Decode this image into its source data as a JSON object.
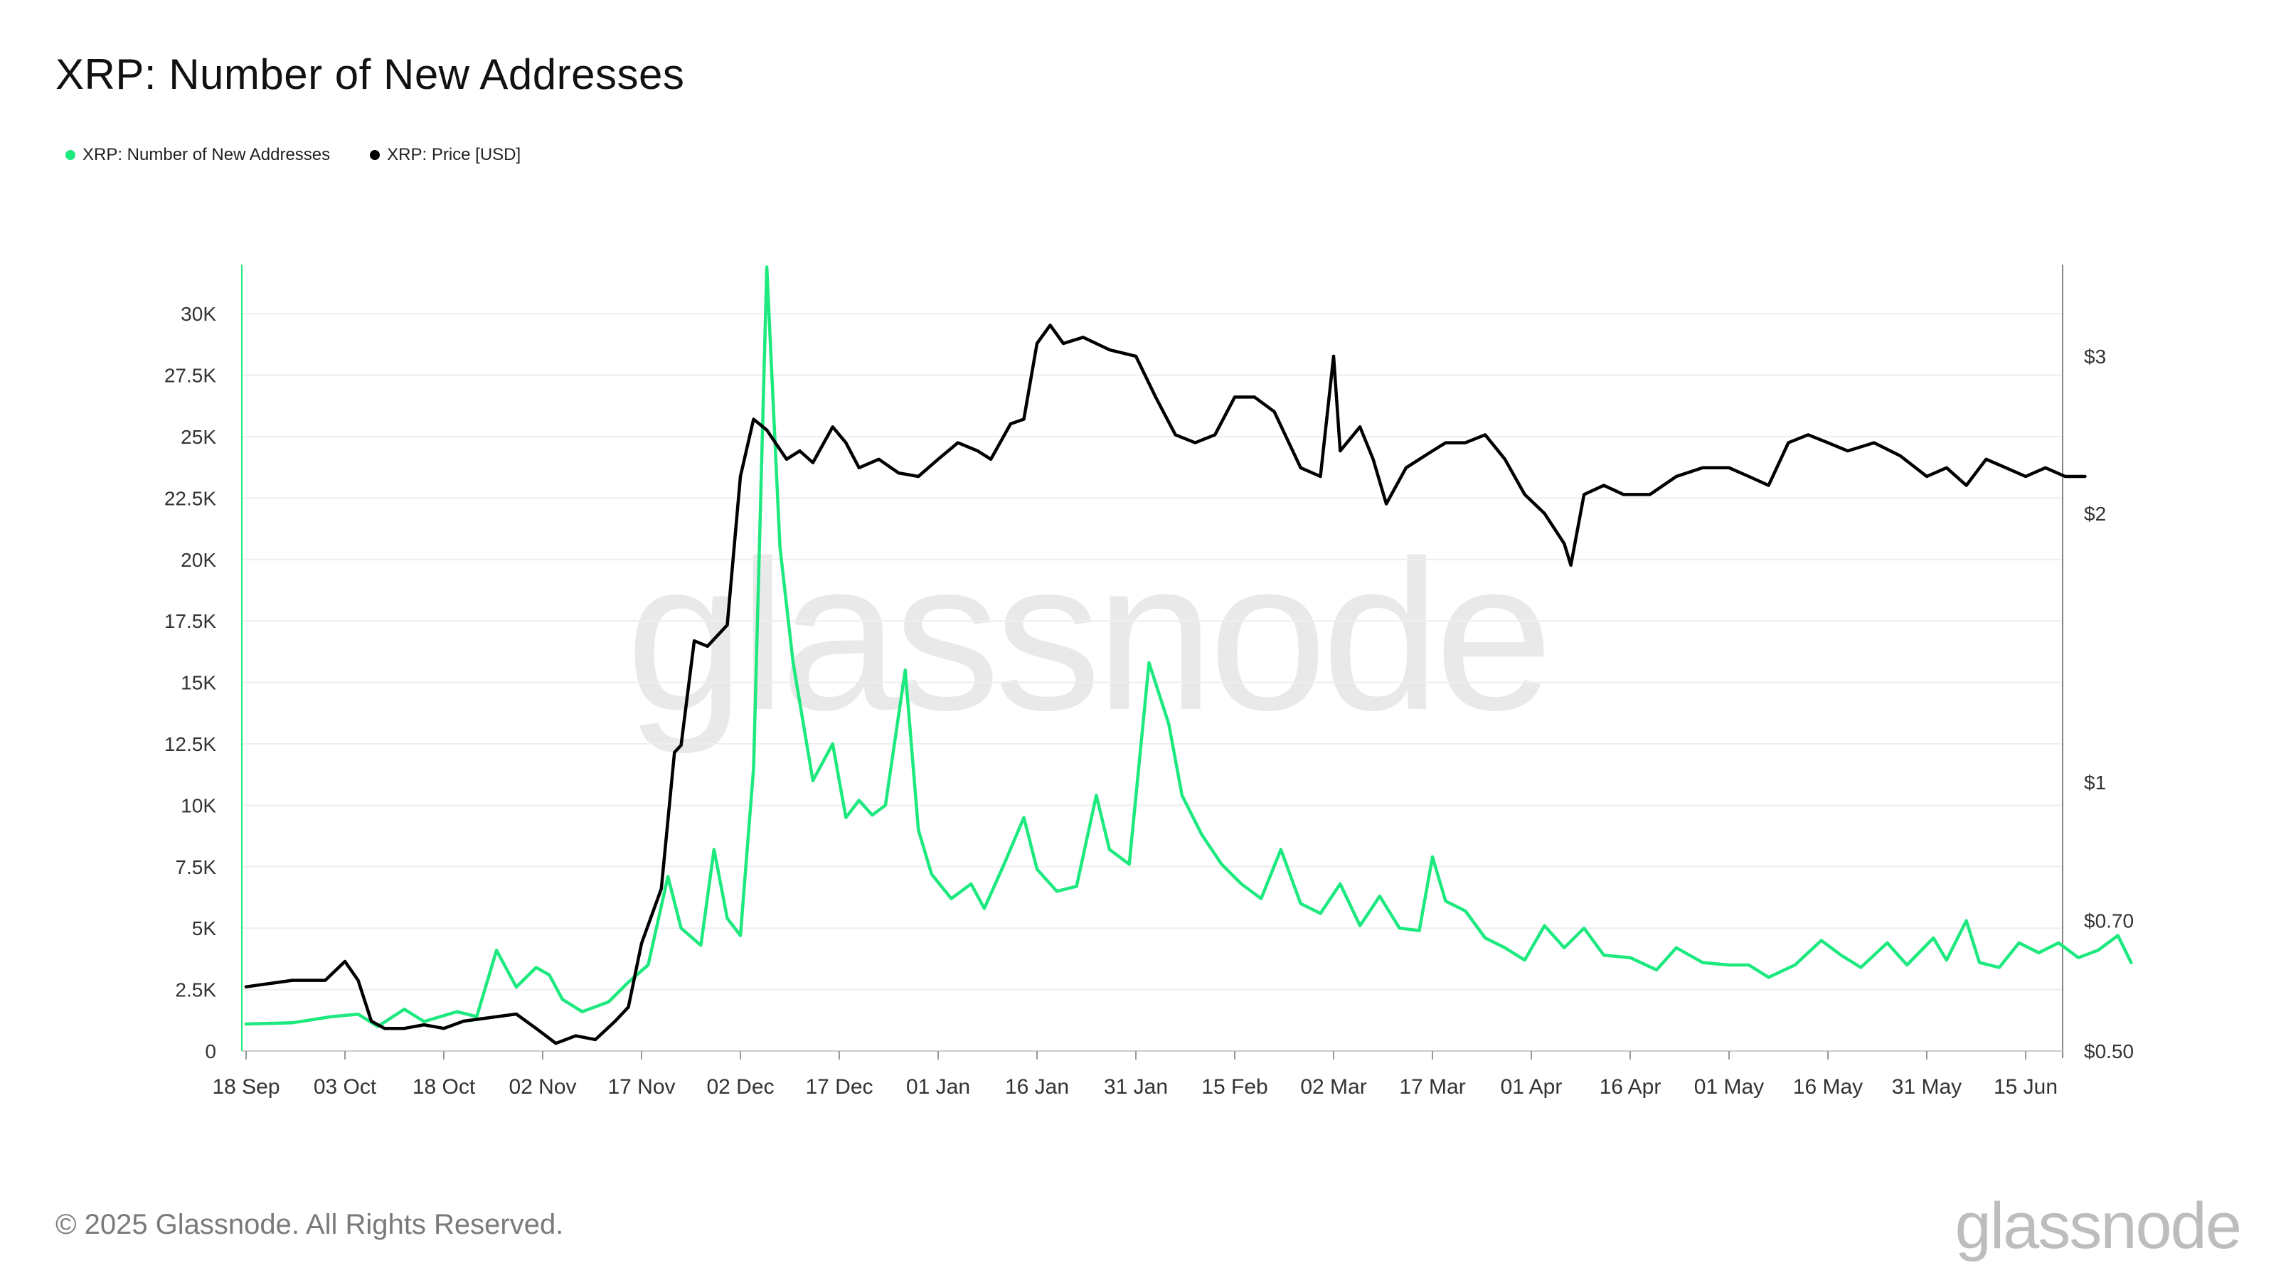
{
  "title": "XRP: Number of New Addresses",
  "watermark": "glassnode",
  "copyright": "© 2025 Glassnode. All Rights Reserved.",
  "brand_logo_text": "glassnode",
  "colors": {
    "addresses": "#1de97f",
    "price": "#000000",
    "grid": "#eeeeee"
  },
  "legend": [
    {
      "label": "XRP: Number of New Addresses",
      "color": "#1de97f"
    },
    {
      "label": "XRP: Price [USD]",
      "color": "#000000"
    }
  ],
  "chart_data": {
    "type": "line",
    "title": "XRP: Number of New Addresses",
    "x_start": "2024-09-18",
    "x_end": "2025-06-20",
    "x_tick_labels": [
      "18 Sep",
      "03 Oct",
      "18 Oct",
      "02 Nov",
      "17 Nov",
      "02 Dec",
      "17 Dec",
      "01 Jan",
      "16 Jan",
      "31 Jan",
      "15 Feb",
      "02 Mar",
      "17 Mar",
      "01 Apr",
      "16 Apr",
      "01 May",
      "16 May",
      "31 May",
      "15 Jun"
    ],
    "y_left": {
      "ticks": [
        0,
        2500,
        5000,
        7500,
        10000,
        12500,
        15000,
        17500,
        20000,
        22500,
        25000,
        27500,
        30000
      ],
      "tick_labels": [
        "0",
        "2.5K",
        "5K",
        "7.5K",
        "10K",
        "12.5K",
        "15K",
        "17.5K",
        "20K",
        "22.5K",
        "25K",
        "27.5K",
        "30K"
      ],
      "range": [
        0,
        32000
      ]
    },
    "y_right": {
      "scale": "log",
      "ticks": [
        0.5,
        0.7,
        1,
        2,
        3
      ],
      "tick_labels": [
        "$0.50",
        "$0.70",
        "$1",
        "$2",
        "$3"
      ],
      "range": [
        0.5,
        3.8
      ]
    },
    "grid": true,
    "legend_position": "top-left",
    "series": [
      {
        "name": "XRP: Number of New Addresses",
        "axis": "left",
        "color": "#1de97f",
        "points": [
          [
            "2024-09-18",
            1100
          ],
          [
            "2024-09-25",
            1150
          ],
          [
            "2024-10-01",
            1400
          ],
          [
            "2024-10-05",
            1500
          ],
          [
            "2024-10-08",
            1000
          ],
          [
            "2024-10-12",
            1700
          ],
          [
            "2024-10-15",
            1200
          ],
          [
            "2024-10-20",
            1600
          ],
          [
            "2024-10-23",
            1400
          ],
          [
            "2024-10-26",
            4100
          ],
          [
            "2024-10-29",
            2600
          ],
          [
            "2024-11-01",
            3400
          ],
          [
            "2024-11-03",
            3100
          ],
          [
            "2024-11-05",
            2100
          ],
          [
            "2024-11-08",
            1600
          ],
          [
            "2024-11-12",
            2000
          ],
          [
            "2024-11-15",
            2800
          ],
          [
            "2024-11-18",
            3500
          ],
          [
            "2024-11-21",
            7100
          ],
          [
            "2024-11-23",
            5000
          ],
          [
            "2024-11-26",
            4300
          ],
          [
            "2024-11-28",
            8200
          ],
          [
            "2024-11-30",
            5400
          ],
          [
            "2024-12-02",
            4700
          ],
          [
            "2024-12-04",
            11500
          ],
          [
            "2024-12-06",
            31900
          ],
          [
            "2024-12-08",
            20500
          ],
          [
            "2024-12-10",
            15800
          ],
          [
            "2024-12-13",
            11000
          ],
          [
            "2024-12-16",
            12500
          ],
          [
            "2024-12-18",
            9500
          ],
          [
            "2024-12-20",
            10200
          ],
          [
            "2024-12-22",
            9600
          ],
          [
            "2024-12-24",
            10000
          ],
          [
            "2024-12-27",
            15500
          ],
          [
            "2024-12-29",
            9000
          ],
          [
            "2024-12-31",
            7200
          ],
          [
            "2025-01-03",
            6200
          ],
          [
            "2025-01-06",
            6800
          ],
          [
            "2025-01-08",
            5800
          ],
          [
            "2025-01-11",
            7600
          ],
          [
            "2025-01-14",
            9500
          ],
          [
            "2025-01-16",
            7400
          ],
          [
            "2025-01-19",
            6500
          ],
          [
            "2025-01-22",
            6700
          ],
          [
            "2025-01-25",
            10400
          ],
          [
            "2025-01-27",
            8200
          ],
          [
            "2025-01-30",
            7600
          ],
          [
            "2025-02-02",
            15800
          ],
          [
            "2025-02-05",
            13300
          ],
          [
            "2025-02-07",
            10400
          ],
          [
            "2025-02-10",
            8800
          ],
          [
            "2025-02-13",
            7600
          ],
          [
            "2025-02-16",
            6800
          ],
          [
            "2025-02-19",
            6200
          ],
          [
            "2025-02-22",
            8200
          ],
          [
            "2025-02-25",
            6000
          ],
          [
            "2025-02-28",
            5600
          ],
          [
            "2025-03-03",
            6800
          ],
          [
            "2025-03-06",
            5100
          ],
          [
            "2025-03-09",
            6300
          ],
          [
            "2025-03-12",
            5000
          ],
          [
            "2025-03-15",
            4900
          ],
          [
            "2025-03-17",
            7900
          ],
          [
            "2025-03-19",
            6100
          ],
          [
            "2025-03-22",
            5700
          ],
          [
            "2025-03-25",
            4600
          ],
          [
            "2025-03-28",
            4200
          ],
          [
            "2025-03-31",
            3700
          ],
          [
            "2025-04-03",
            5100
          ],
          [
            "2025-04-06",
            4200
          ],
          [
            "2025-04-09",
            5000
          ],
          [
            "2025-04-12",
            3900
          ],
          [
            "2025-04-16",
            3800
          ],
          [
            "2025-04-20",
            3300
          ],
          [
            "2025-04-23",
            4200
          ],
          [
            "2025-04-27",
            3600
          ],
          [
            "2025-05-01",
            3500
          ],
          [
            "2025-05-04",
            3500
          ],
          [
            "2025-05-07",
            3000
          ],
          [
            "2025-05-11",
            3500
          ],
          [
            "2025-05-15",
            4500
          ],
          [
            "2025-05-18",
            3900
          ],
          [
            "2025-05-21",
            3400
          ],
          [
            "2025-05-25",
            4400
          ],
          [
            "2025-05-28",
            3500
          ],
          [
            "2025-06-01",
            4600
          ],
          [
            "2025-06-03",
            3700
          ],
          [
            "2025-06-06",
            5300
          ],
          [
            "2025-06-08",
            3600
          ],
          [
            "2025-06-11",
            3400
          ],
          [
            "2025-06-14",
            4400
          ],
          [
            "2025-06-17",
            4000
          ],
          [
            "2025-06-20",
            4400
          ],
          [
            "2025-06-23",
            3800
          ],
          [
            "2025-06-26",
            4100
          ],
          [
            "2025-06-29",
            4700
          ],
          [
            "2025-07-01",
            3600
          ]
        ]
      },
      {
        "name": "XRP: Price [USD]",
        "axis": "right",
        "color": "#000000",
        "points": [
          [
            "2024-09-18",
            0.59
          ],
          [
            "2024-09-25",
            0.6
          ],
          [
            "2024-09-30",
            0.6
          ],
          [
            "2024-10-03",
            0.63
          ],
          [
            "2024-10-05",
            0.6
          ],
          [
            "2024-10-07",
            0.54
          ],
          [
            "2024-10-09",
            0.53
          ],
          [
            "2024-10-12",
            0.53
          ],
          [
            "2024-10-15",
            0.535
          ],
          [
            "2024-10-18",
            0.53
          ],
          [
            "2024-10-21",
            0.54
          ],
          [
            "2024-10-25",
            0.545
          ],
          [
            "2024-10-29",
            0.55
          ],
          [
            "2024-11-01",
            0.53
          ],
          [
            "2024-11-04",
            0.51
          ],
          [
            "2024-11-07",
            0.52
          ],
          [
            "2024-11-10",
            0.515
          ],
          [
            "2024-11-13",
            0.54
          ],
          [
            "2024-11-15",
            0.56
          ],
          [
            "2024-11-17",
            0.66
          ],
          [
            "2024-11-20",
            0.76
          ],
          [
            "2024-11-22",
            1.08
          ],
          [
            "2024-11-23",
            1.1
          ],
          [
            "2024-11-25",
            1.44
          ],
          [
            "2024-11-27",
            1.42
          ],
          [
            "2024-11-30",
            1.5
          ],
          [
            "2024-12-02",
            2.2
          ],
          [
            "2024-12-04",
            2.55
          ],
          [
            "2024-12-06",
            2.48
          ],
          [
            "2024-12-09",
            2.3
          ],
          [
            "2024-12-11",
            2.35
          ],
          [
            "2024-12-13",
            2.28
          ],
          [
            "2024-12-16",
            2.5
          ],
          [
            "2024-12-18",
            2.4
          ],
          [
            "2024-12-20",
            2.25
          ],
          [
            "2024-12-23",
            2.3
          ],
          [
            "2024-12-26",
            2.22
          ],
          [
            "2024-12-29",
            2.2
          ],
          [
            "2025-01-01",
            2.3
          ],
          [
            "2025-01-04",
            2.4
          ],
          [
            "2025-01-07",
            2.35
          ],
          [
            "2025-01-09",
            2.3
          ],
          [
            "2025-01-12",
            2.52
          ],
          [
            "2025-01-14",
            2.55
          ],
          [
            "2025-01-16",
            3.1
          ],
          [
            "2025-01-18",
            3.25
          ],
          [
            "2025-01-20",
            3.1
          ],
          [
            "2025-01-23",
            3.15
          ],
          [
            "2025-01-27",
            3.05
          ],
          [
            "2025-01-31",
            3.0
          ],
          [
            "2025-02-03",
            2.7
          ],
          [
            "2025-02-06",
            2.45
          ],
          [
            "2025-02-09",
            2.4
          ],
          [
            "2025-02-12",
            2.45
          ],
          [
            "2025-02-15",
            2.7
          ],
          [
            "2025-02-18",
            2.7
          ],
          [
            "2025-02-21",
            2.6
          ],
          [
            "2025-02-25",
            2.25
          ],
          [
            "2025-02-28",
            2.2
          ],
          [
            "2025-03-02",
            3.0
          ],
          [
            "2025-03-03",
            2.35
          ],
          [
            "2025-03-06",
            2.5
          ],
          [
            "2025-03-08",
            2.3
          ],
          [
            "2025-03-10",
            2.05
          ],
          [
            "2025-03-13",
            2.25
          ],
          [
            "2025-03-17",
            2.35
          ],
          [
            "2025-03-19",
            2.4
          ],
          [
            "2025-03-22",
            2.4
          ],
          [
            "2025-03-25",
            2.45
          ],
          [
            "2025-03-28",
            2.3
          ],
          [
            "2025-03-31",
            2.1
          ],
          [
            "2025-04-03",
            2.0
          ],
          [
            "2025-04-06",
            1.85
          ],
          [
            "2025-04-07",
            1.75
          ],
          [
            "2025-04-09",
            2.1
          ],
          [
            "2025-04-12",
            2.15
          ],
          [
            "2025-04-15",
            2.1
          ],
          [
            "2025-04-19",
            2.1
          ],
          [
            "2025-04-23",
            2.2
          ],
          [
            "2025-04-27",
            2.25
          ],
          [
            "2025-05-01",
            2.25
          ],
          [
            "2025-05-04",
            2.2
          ],
          [
            "2025-05-07",
            2.15
          ],
          [
            "2025-05-10",
            2.4
          ],
          [
            "2025-05-13",
            2.45
          ],
          [
            "2025-05-16",
            2.4
          ],
          [
            "2025-05-19",
            2.35
          ],
          [
            "2025-05-23",
            2.4
          ],
          [
            "2025-05-27",
            2.32
          ],
          [
            "2025-05-31",
            2.2
          ],
          [
            "2025-06-03",
            2.25
          ],
          [
            "2025-06-06",
            2.15
          ],
          [
            "2025-06-09",
            2.3
          ],
          [
            "2025-06-12",
            2.25
          ],
          [
            "2025-06-15",
            2.2
          ],
          [
            "2025-06-18",
            2.25
          ],
          [
            "2025-06-21",
            2.2
          ],
          [
            "2025-06-24",
            2.2
          ]
        ]
      }
    ]
  }
}
